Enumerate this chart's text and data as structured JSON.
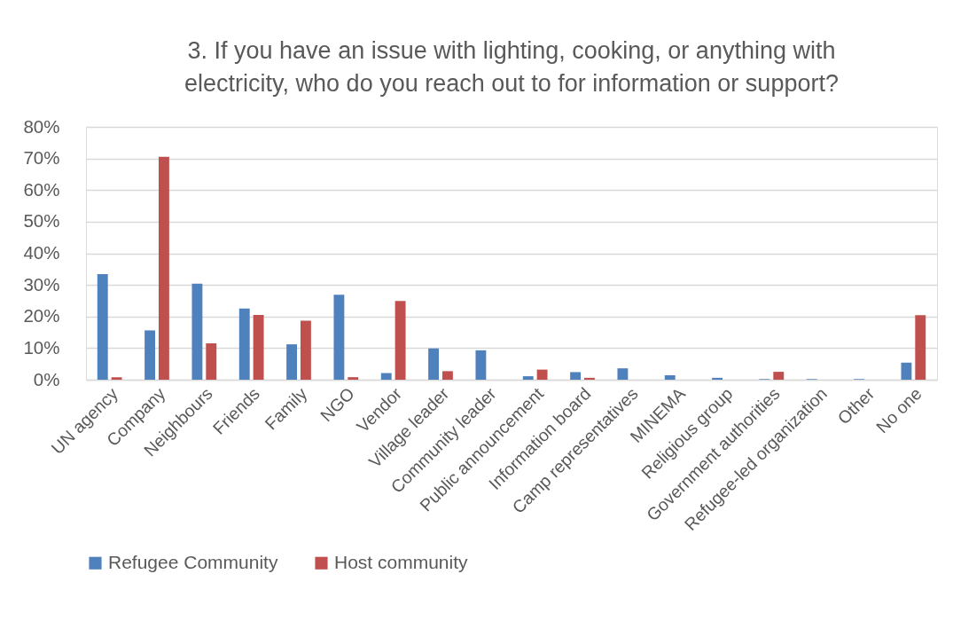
{
  "chart_data": {
    "type": "bar",
    "title": "3. If you have an issue with lighting, cooking, or anything with electricity, who do you reach out to for information or support?",
    "categories": [
      "UN agency",
      "Company",
      "Neighbours",
      "Friends",
      "Family",
      "NGO",
      "Vendor",
      "Village leader",
      "Community leader",
      "Public announcement",
      "Information board",
      "Camp representatives",
      "MINEMA",
      "Religious group",
      "Government authorities",
      "Refugee-led organization",
      "Other",
      "No one"
    ],
    "series": [
      {
        "name": "Refugee Community",
        "color": "#4f81bd",
        "values": [
          33.4,
          15.6,
          30.4,
          22.5,
          11.2,
          26.9,
          2.1,
          9.9,
          9.3,
          1.1,
          2.4,
          3.6,
          1.4,
          0.6,
          0.2,
          0.2,
          0.2,
          5.4
        ]
      },
      {
        "name": "Host community",
        "color": "#c0504d",
        "values": [
          0.8,
          70.5,
          11.5,
          20.5,
          18.7,
          0.8,
          24.9,
          2.7,
          null,
          3.2,
          0.6,
          null,
          null,
          null,
          2.5,
          null,
          null,
          20.4
        ]
      }
    ],
    "ylim": [
      0,
      80
    ],
    "yticks": [
      {
        "value": 0,
        "label": "0%"
      },
      {
        "value": 10,
        "label": "10%"
      },
      {
        "value": 20,
        "label": "20%"
      },
      {
        "value": 30,
        "label": "30%"
      },
      {
        "value": 40,
        "label": "40%"
      },
      {
        "value": 50,
        "label": "50%"
      },
      {
        "value": 60,
        "label": "60%"
      },
      {
        "value": 70,
        "label": "70%"
      },
      {
        "value": 80,
        "label": "80%"
      }
    ],
    "grid": "y",
    "legend": "bottom"
  }
}
